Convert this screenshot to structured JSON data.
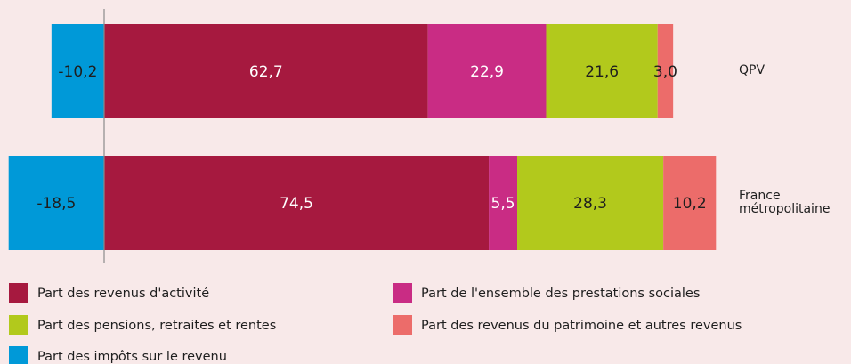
{
  "chart_data": {
    "type": "stacked-bar-horizontal",
    "categories": [
      "QPV",
      "France métropolitaine"
    ],
    "series": [
      {
        "name": "Part des revenus d'activité",
        "color": "#a6193f",
        "values": [
          62.7,
          74.5
        ],
        "value_labels": [
          "62,7",
          "74,5"
        ]
      },
      {
        "name": "Part de l'ensemble des prestations sociales",
        "color": "#c92c84",
        "values": [
          22.9,
          5.5
        ],
        "value_labels": [
          "22,9",
          "5,5"
        ]
      },
      {
        "name": "Part des pensions, retraites et rentes",
        "color": "#b2c91c",
        "values": [
          21.6,
          28.3
        ],
        "value_labels": [
          "21,6",
          "28,3"
        ]
      },
      {
        "name": "Part des revenus du patrimoine et autres revenus",
        "color": "#ec6c6a",
        "values": [
          3.0,
          10.2
        ],
        "value_labels": [
          "3,0",
          "10,2"
        ]
      },
      {
        "name": "Part des impôts sur le revenu",
        "color": "#0099d8",
        "values": [
          -10.2,
          -18.5
        ],
        "value_labels": [
          "-10,2",
          "-18,5"
        ]
      }
    ]
  }
}
